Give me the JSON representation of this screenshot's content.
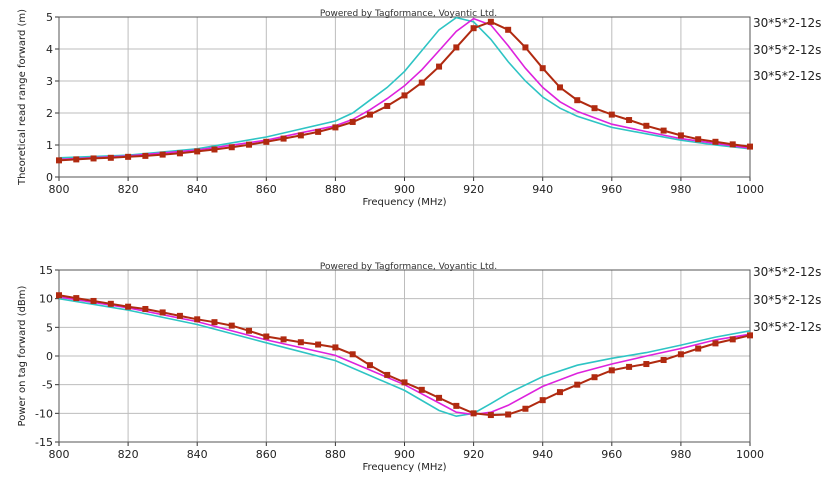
{
  "chart_data": [
    {
      "type": "line",
      "credit": "Powered by Tagformance, Voyantic Ltd.",
      "xlabel": "Frequency (MHz)",
      "ylabel": "Theoretical read range forward (m)",
      "xlim": [
        800,
        1000
      ],
      "ylim": [
        0,
        5
      ],
      "xticks": [
        "800",
        "820",
        "840",
        "860",
        "880",
        "900",
        "920",
        "940",
        "960",
        "980",
        "1000"
      ],
      "yticks": [
        "0",
        "1",
        "2",
        "3",
        "4",
        "5"
      ],
      "grid": true,
      "legend": [
        "30*5*2-12s",
        "30*5*2-12s",
        "30*5*2-12s"
      ],
      "series": [
        {
          "color": "#2ec4c4",
          "marker": "none",
          "x": [
            800,
            820,
            840,
            860,
            870,
            880,
            885,
            890,
            895,
            900,
            905,
            910,
            915,
            920,
            925,
            930,
            935,
            940,
            945,
            950,
            960,
            970,
            980,
            990,
            1000
          ],
          "y": [
            0.6,
            0.68,
            0.88,
            1.25,
            1.5,
            1.75,
            2.0,
            2.4,
            2.8,
            3.3,
            3.95,
            4.6,
            4.98,
            4.85,
            4.3,
            3.6,
            3.0,
            2.5,
            2.15,
            1.9,
            1.55,
            1.35,
            1.15,
            1.0,
            0.88
          ]
        },
        {
          "color": "#dd22dd",
          "marker": "none",
          "x": [
            800,
            820,
            840,
            860,
            870,
            880,
            885,
            890,
            895,
            900,
            905,
            910,
            915,
            920,
            925,
            930,
            935,
            940,
            945,
            950,
            960,
            970,
            980,
            990,
            1000
          ],
          "y": [
            0.55,
            0.66,
            0.84,
            1.15,
            1.38,
            1.6,
            1.8,
            2.1,
            2.45,
            2.85,
            3.35,
            3.95,
            4.55,
            4.95,
            4.75,
            4.1,
            3.4,
            2.8,
            2.35,
            2.05,
            1.65,
            1.42,
            1.2,
            1.05,
            0.9
          ]
        },
        {
          "color": "#b02a10",
          "marker": "square",
          "x": [
            800,
            805,
            810,
            815,
            820,
            825,
            830,
            835,
            840,
            845,
            850,
            855,
            860,
            865,
            870,
            875,
            880,
            885,
            890,
            895,
            900,
            905,
            910,
            915,
            920,
            925,
            930,
            935,
            940,
            945,
            950,
            955,
            960,
            965,
            970,
            975,
            980,
            985,
            990,
            995,
            1000
          ],
          "y": [
            0.52,
            0.55,
            0.58,
            0.6,
            0.63,
            0.66,
            0.7,
            0.74,
            0.8,
            0.86,
            0.93,
            1.01,
            1.1,
            1.2,
            1.3,
            1.41,
            1.55,
            1.72,
            1.95,
            2.22,
            2.55,
            2.95,
            3.45,
            4.05,
            4.65,
            4.85,
            4.6,
            4.05,
            3.4,
            2.8,
            2.4,
            2.15,
            1.95,
            1.78,
            1.6,
            1.45,
            1.3,
            1.18,
            1.1,
            1.02,
            0.95
          ]
        }
      ]
    },
    {
      "type": "line",
      "credit": "Powered by Tagformance, Voyantic Ltd.",
      "xlabel": "Frequency (MHz)",
      "ylabel": "Power on tag forward (dBm)",
      "xlim": [
        800,
        1000
      ],
      "ylim": [
        -15,
        15
      ],
      "xticks": [
        "800",
        "820",
        "840",
        "860",
        "880",
        "900",
        "920",
        "940",
        "960",
        "980",
        "1000"
      ],
      "yticks": [
        "-15",
        "-10",
        "-5",
        "0",
        "5",
        "10",
        "15"
      ],
      "grid": true,
      "legend": [
        "30*5*2-12s",
        "30*5*2-12s",
        "30*5*2-12s"
      ],
      "series": [
        {
          "color": "#2ec4c4",
          "marker": "none",
          "x": [
            800,
            820,
            840,
            860,
            880,
            900,
            910,
            915,
            920,
            925,
            930,
            940,
            950,
            960,
            970,
            980,
            990,
            1000
          ],
          "y": [
            10,
            8,
            5.5,
            2.3,
            -0.8,
            -6,
            -9.5,
            -10.5,
            -10,
            -8.3,
            -6.5,
            -3.6,
            -1.6,
            -0.4,
            0.6,
            1.9,
            3.3,
            4.4
          ]
        },
        {
          "color": "#dd22dd",
          "marker": "none",
          "x": [
            800,
            820,
            840,
            860,
            880,
            900,
            910,
            915,
            920,
            925,
            930,
            940,
            950,
            960,
            970,
            980,
            990,
            1000
          ],
          "y": [
            10.3,
            8.4,
            6,
            2.8,
            0.1,
            -5,
            -8.2,
            -9.8,
            -10.2,
            -9.8,
            -8.6,
            -5.3,
            -3,
            -1.4,
            0,
            1.3,
            2.8,
            3.8
          ]
        },
        {
          "color": "#b02a10",
          "marker": "square",
          "x": [
            800,
            805,
            810,
            815,
            820,
            825,
            830,
            835,
            840,
            845,
            850,
            855,
            860,
            865,
            870,
            875,
            880,
            885,
            890,
            895,
            900,
            905,
            910,
            915,
            920,
            925,
            930,
            935,
            940,
            945,
            950,
            955,
            960,
            965,
            970,
            975,
            980,
            985,
            990,
            995,
            1000
          ],
          "y": [
            10.6,
            10.1,
            9.6,
            9.1,
            8.6,
            8.2,
            7.6,
            7.0,
            6.4,
            5.9,
            5.3,
            4.4,
            3.4,
            2.9,
            2.4,
            2.0,
            1.5,
            0.3,
            -1.6,
            -3.3,
            -4.6,
            -5.9,
            -7.3,
            -8.7,
            -10.0,
            -10.3,
            -10.2,
            -9.2,
            -7.7,
            -6.3,
            -5.0,
            -3.7,
            -2.5,
            -1.9,
            -1.4,
            -0.7,
            0.3,
            1.3,
            2.2,
            2.9,
            3.6
          ]
        }
      ]
    }
  ]
}
